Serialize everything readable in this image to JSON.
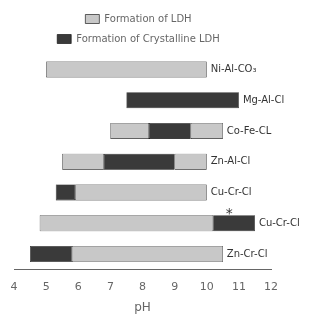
{
  "chart_data": {
    "type": "bar",
    "orientation": "horizontal",
    "xlabel": "pH",
    "xlim": [
      4,
      12
    ],
    "xticks": [
      4,
      5,
      6,
      7,
      8,
      9,
      10,
      11,
      12
    ],
    "categories": [
      "Ni-Al-CO₃",
      "Mg-Al-Cl",
      "Co-Fe-CL",
      "Zn-Al-Cl",
      "Cu-Cr-Cl",
      "Cu-Cr-Cl",
      "Zn-Cr-Cl"
    ],
    "series": [
      {
        "name": "Formation of LDH",
        "color": "#c8c8c8",
        "values": [
          [
            [
              5.0,
              10.0
            ]
          ],
          [],
          [
            [
              7.0,
              8.2
            ],
            [
              9.5,
              10.5
            ]
          ],
          [
            [
              5.5,
              6.8
            ],
            [
              9.0,
              10.0
            ]
          ],
          [
            [
              5.9,
              10.0
            ]
          ],
          [
            [
              4.8,
              10.2
            ]
          ],
          [
            [
              5.8,
              10.5
            ]
          ]
        ]
      },
      {
        "name": "Formation of Crystalline LDH",
        "color": "#3a3a3a",
        "values": [
          [],
          [
            [
              7.5,
              11.0
            ]
          ],
          [
            [
              8.2,
              9.5
            ]
          ],
          [
            [
              6.8,
              9.0
            ]
          ],
          [
            [
              5.3,
              5.9
            ]
          ],
          [
            [
              10.2,
              11.5
            ]
          ],
          [
            [
              4.5,
              5.8
            ]
          ]
        ]
      }
    ],
    "annotations": [
      null,
      null,
      null,
      null,
      null,
      {
        "text": "*",
        "x": 10.7
      },
      null
    ],
    "legend": "top",
    "grid": false,
    "tick_labels": "x"
  }
}
